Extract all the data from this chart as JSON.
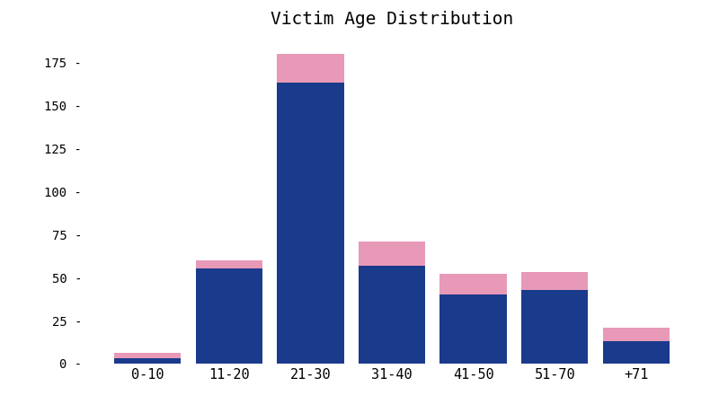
{
  "categories": [
    "0-10",
    "11-20",
    "21-30",
    "31-40",
    "41-50",
    "51-70",
    "+71"
  ],
  "male_values": [
    3,
    55,
    163,
    57,
    40,
    43,
    13
  ],
  "female_values": [
    3,
    5,
    17,
    14,
    12,
    10,
    8
  ],
  "male_color": "#1a3a8c",
  "female_color": "#e899b8",
  "title": "Victim Age Distribution",
  "title_fontsize": 14,
  "title_fontweight": "normal",
  "background_color": "#ffffff",
  "ylim": [
    0,
    190
  ],
  "yticks": [
    0,
    25,
    50,
    75,
    100,
    125,
    150,
    175
  ],
  "bar_width": 0.82,
  "figsize": [
    8.0,
    4.5
  ],
  "dpi": 100
}
